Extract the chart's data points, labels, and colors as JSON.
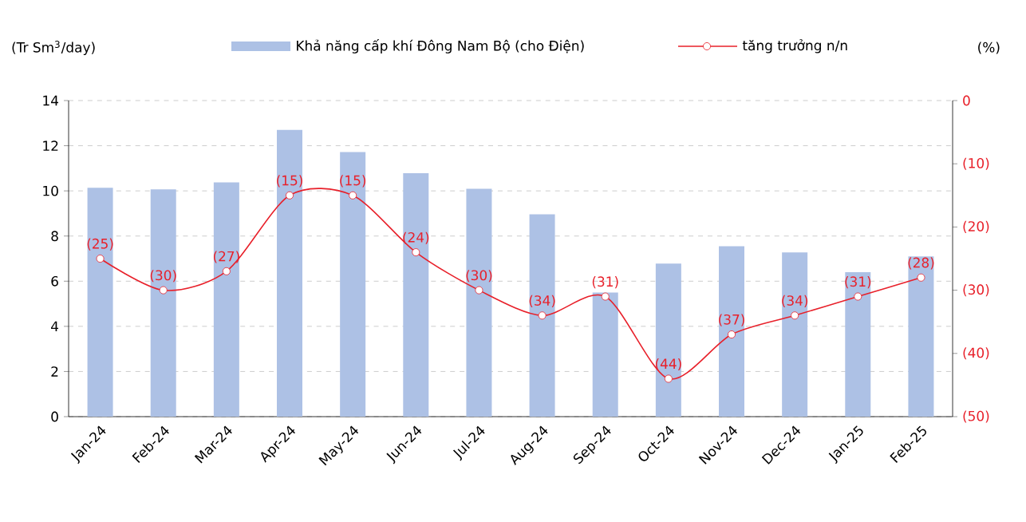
{
  "chart_data": {
    "type": "bar",
    "categories": [
      "Jan-24",
      "Feb-24",
      "Mar-24",
      "Apr-24",
      "May-24",
      "Jun-24",
      "Jul-24",
      "Aug-24",
      "Sep-24",
      "Oct-24",
      "Nov-24",
      "Dec-24",
      "Jan-25",
      "Feb-25"
    ],
    "series": [
      {
        "name": "Khả năng cấp khí Đông Nam Bộ (cho Điện)",
        "color": "#adc1e5",
        "values": [
          10.14,
          10.07,
          10.38,
          12.7,
          11.72,
          10.78,
          10.09,
          8.96,
          5.5,
          6.78,
          7.55,
          7.27,
          6.4,
          7.1
        ]
      },
      {
        "name": "tăng trưởng n/n",
        "type": "line",
        "axis": "y2",
        "color": "#e8202a",
        "marker": "circle",
        "values": [
          -25,
          -30,
          -27,
          -15,
          -15,
          -24,
          -30,
          -34,
          -31,
          -44,
          -37,
          -34,
          -31,
          -28
        ],
        "value_labels": [
          "(25)",
          "(30)",
          "(27)",
          "(15)",
          "(15)",
          "(24)",
          "(30)",
          "(34)",
          "(31)",
          "(44)",
          "(37)",
          "(34)",
          "(31)",
          "(28)"
        ]
      }
    ],
    "ylabel": "(Tr Sm$^{3}$/day)",
    "y2label": "(%)",
    "ylim": [
      0,
      14
    ],
    "yticks": [
      0,
      2,
      4,
      6,
      8,
      10,
      12,
      14
    ],
    "y2lim": [
      -50,
      0
    ],
    "y2ticks": [
      {
        "value": -50,
        "label": "(50)"
      },
      {
        "value": -40,
        "label": "(40)"
      },
      {
        "value": -30,
        "label": "(30)"
      },
      {
        "value": -20,
        "label": "(20)"
      },
      {
        "value": -10,
        "label": "(10)"
      },
      0
    ],
    "grid": "y",
    "legend": "top"
  }
}
